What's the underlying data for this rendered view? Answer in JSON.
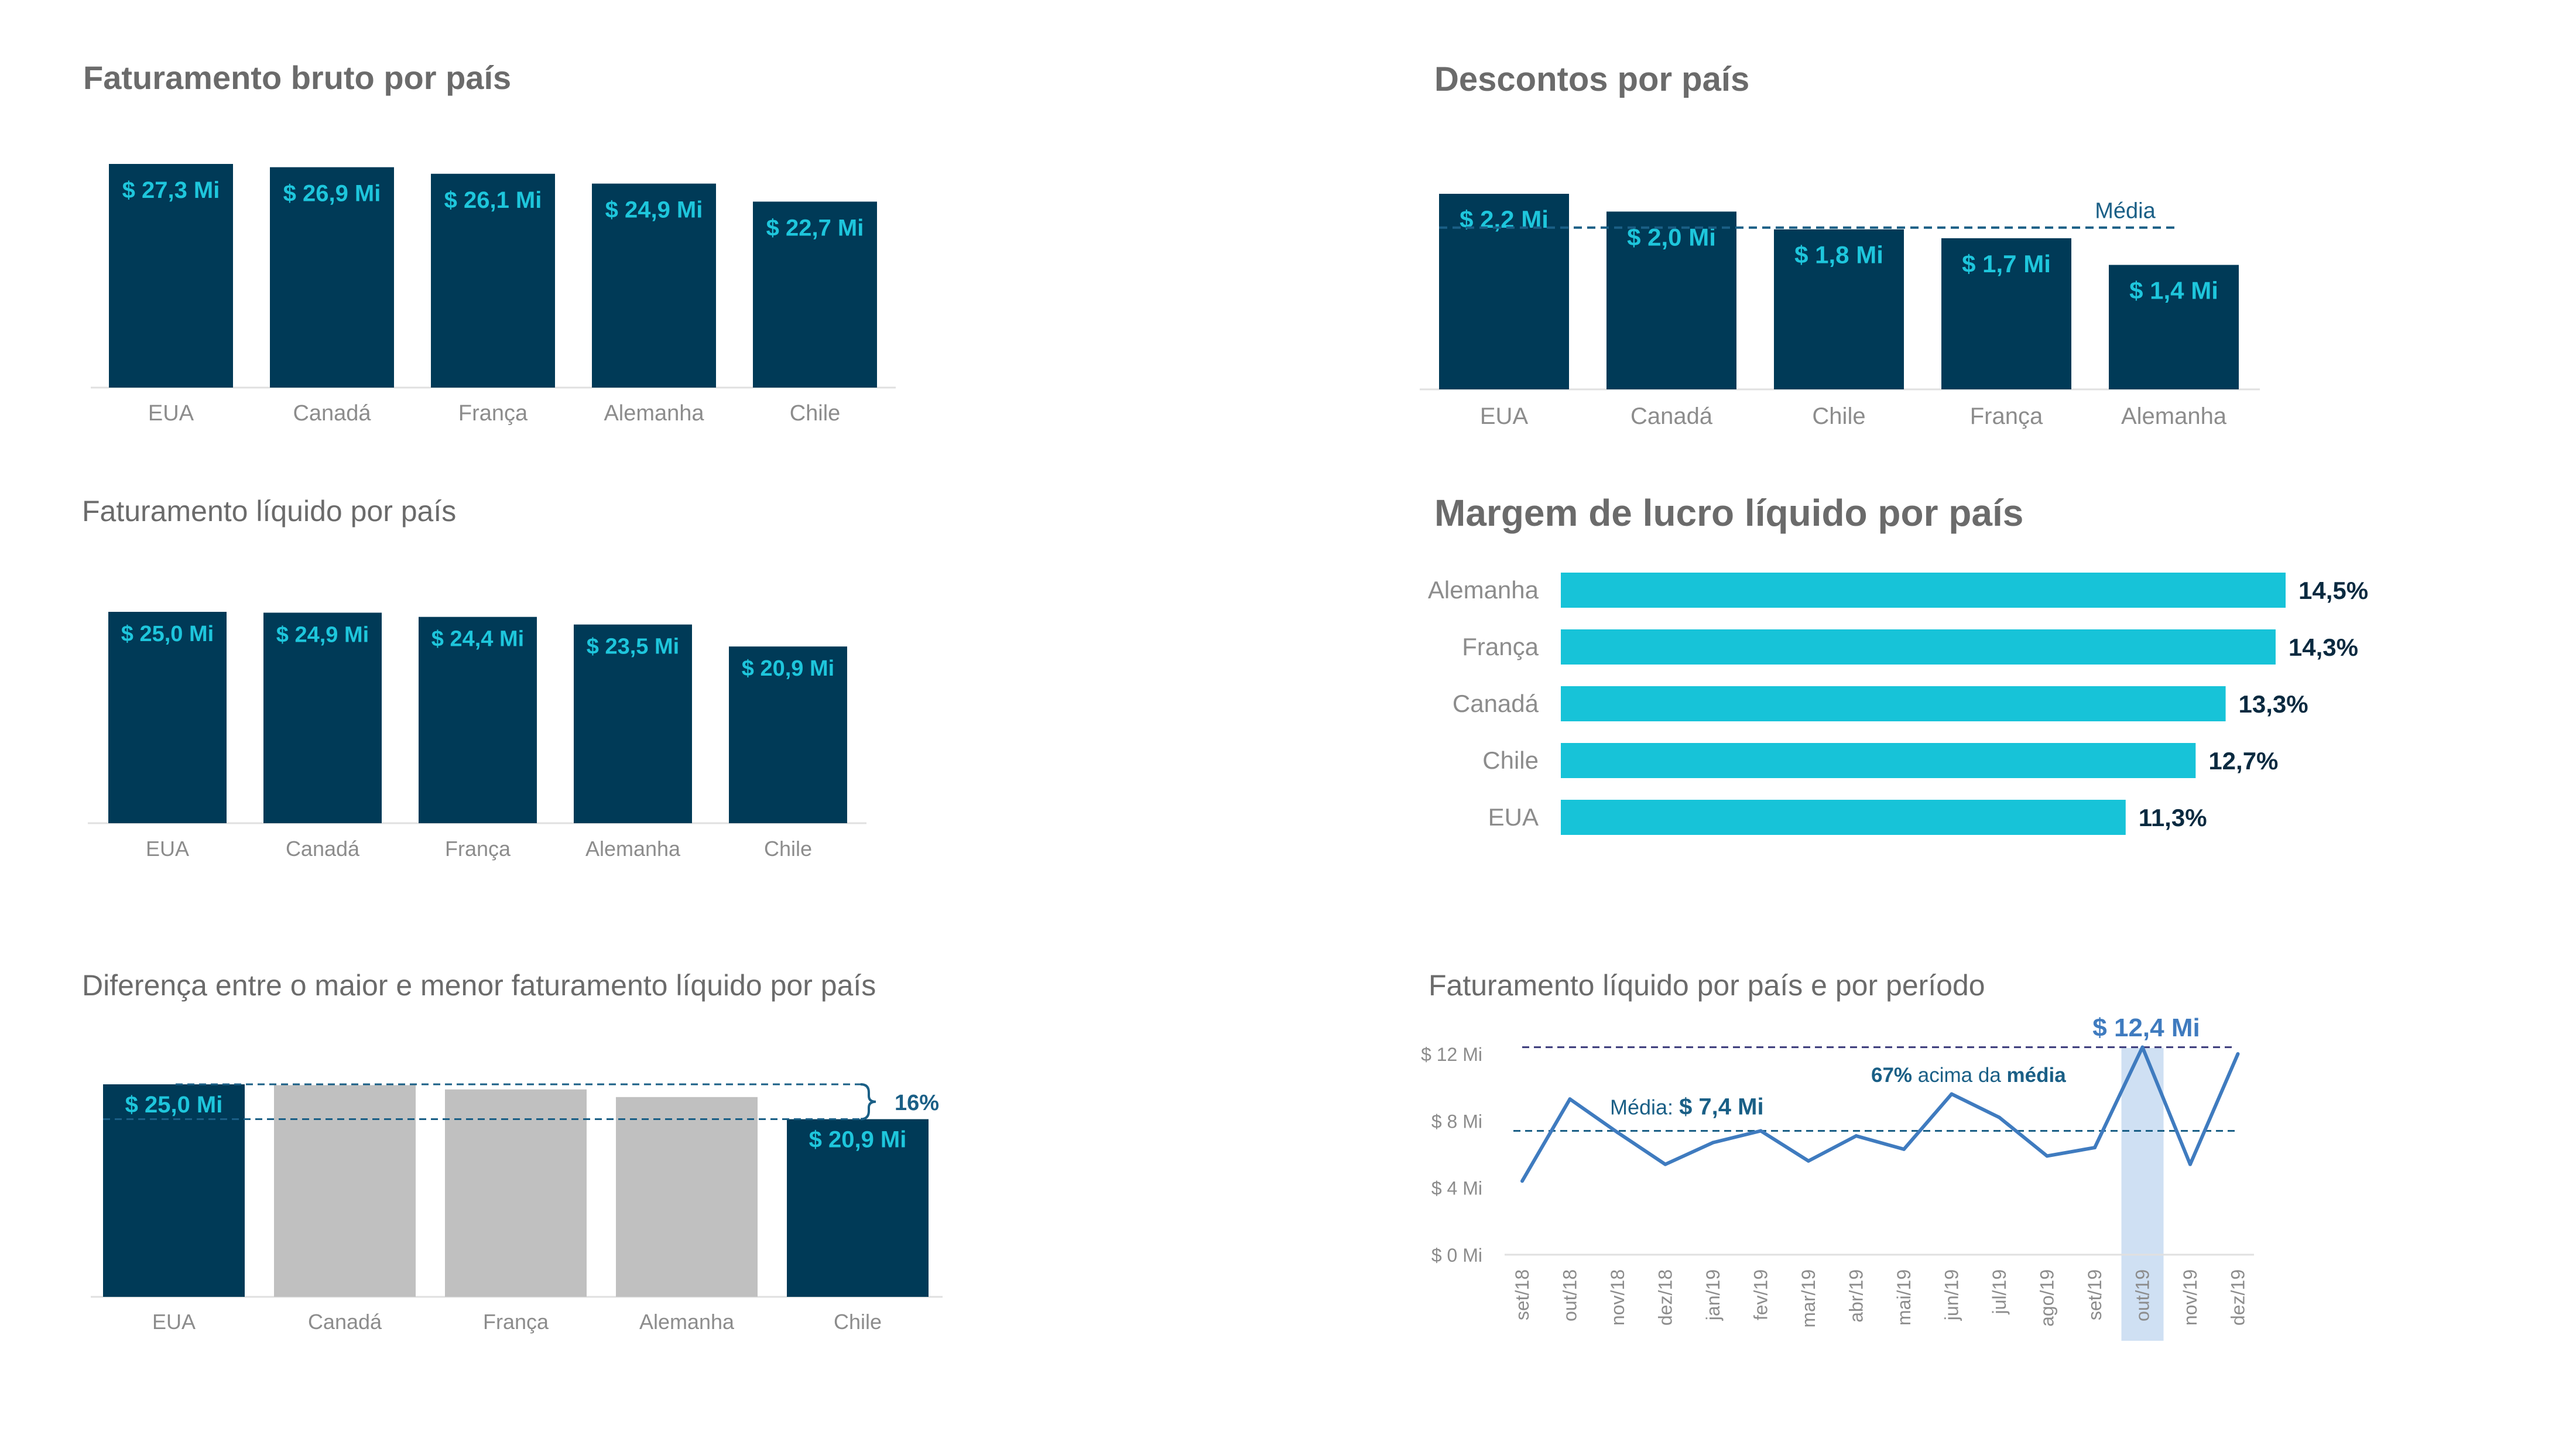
{
  "chart_data": [
    {
      "id": "gross",
      "type": "bar",
      "title": "Faturamento bruto por país",
      "categories": [
        "EUA",
        "Canadá",
        "França",
        "Alemanha",
        "Chile"
      ],
      "values": [
        27.3,
        26.9,
        26.1,
        24.9,
        22.7
      ],
      "labels": [
        "$ 27,3 Mi",
        "$ 26,9 Mi",
        "$ 26,1 Mi",
        "$ 24,9 Mi",
        "$ 22,7 Mi"
      ],
      "ylim": [
        0,
        27.3
      ],
      "grid": false,
      "color": "#003a57"
    },
    {
      "id": "discounts",
      "type": "bar",
      "title": "Descontos por país",
      "categories": [
        "EUA",
        "Canadá",
        "Chile",
        "França",
        "Alemanha"
      ],
      "values": [
        2.2,
        2.0,
        1.8,
        1.7,
        1.4
      ],
      "labels": [
        "$ 2,2 Mi",
        "$ 2,0 Mi",
        "$ 1,8 Mi",
        "$ 1,7 Mi",
        "$ 1,4 Mi"
      ],
      "reference_line": {
        "label": "Média",
        "value": 1.82
      },
      "ylim": [
        0,
        2.2
      ],
      "grid": false,
      "color": "#003a57"
    },
    {
      "id": "net",
      "type": "bar",
      "title": "Faturamento líquido por país",
      "categories": [
        "EUA",
        "Canadá",
        "França",
        "Alemanha",
        "Chile"
      ],
      "values": [
        25.0,
        24.9,
        24.4,
        23.5,
        20.9
      ],
      "labels": [
        "$ 25,0 Mi",
        "$ 24,9 Mi",
        "$ 24,4 Mi",
        "$ 23,5 Mi",
        "$ 20,9 Mi"
      ],
      "ylim": [
        0,
        25.0
      ],
      "grid": false,
      "color": "#003a57"
    },
    {
      "id": "margin",
      "type": "bar",
      "orientation": "horizontal",
      "title": "Margem de lucro líquido por país",
      "categories": [
        "Alemanha",
        "França",
        "Canadá",
        "Chile",
        "EUA"
      ],
      "values": [
        14.5,
        14.3,
        13.3,
        12.7,
        11.3
      ],
      "labels": [
        "14,5%",
        "14,3%",
        "13,3%",
        "12,7%",
        "11,3%"
      ],
      "xlim": [
        0,
        14.5
      ],
      "grid": false,
      "color": "#17c3d8"
    },
    {
      "id": "diff",
      "type": "bar",
      "title": "Diferença entre o maior e menor faturamento líquido por país",
      "categories": [
        "EUA",
        "Canadá",
        "França",
        "Alemanha",
        "Chile"
      ],
      "values": [
        25.0,
        24.9,
        24.4,
        23.5,
        20.9
      ],
      "labels": [
        "$ 25,0 Mi",
        "",
        "",
        "",
        "$ 20,9 Mi"
      ],
      "highlighted": [
        true,
        false,
        false,
        false,
        true
      ],
      "difference_label": "16%",
      "ylim": [
        0,
        25.0
      ],
      "grid": false,
      "colors": {
        "highlight": "#003a57",
        "muted": "#c0c0c0",
        "bracket": "#1a5f86"
      }
    },
    {
      "id": "period",
      "type": "line",
      "title": "Faturamento líquido por país e por período",
      "x": [
        "set/18",
        "out/18",
        "nov/18",
        "dez/18",
        "jan/19",
        "fev/19",
        "mar/19",
        "abr/19",
        "mai/19",
        "jun/19",
        "jul/19",
        "ago/19",
        "set/19",
        "out/19",
        "nov/19",
        "dez/19"
      ],
      "values": [
        4.4,
        9.3,
        7.3,
        5.4,
        6.7,
        7.4,
        5.6,
        7.1,
        6.3,
        9.6,
        8.2,
        5.9,
        6.4,
        12.4,
        5.4,
        12.0
      ],
      "yticks": [
        "$ 0 Mi",
        "$ 4 Mi",
        "$ 8 Mi",
        "$ 12 Mi"
      ],
      "ytick_values": [
        0,
        4,
        8,
        12
      ],
      "ylim": [
        0,
        12
      ],
      "average": {
        "value": 7.4,
        "prefix": "Média: ",
        "label": "$ 7,4 Mi"
      },
      "max": {
        "value": 12.4,
        "label": "$ 12,4 Mi"
      },
      "highlight_period": "out/19",
      "annotation": {
        "pct": "67%",
        "mid": " acima da ",
        "word": "média"
      },
      "grid": false,
      "colors": {
        "line": "#3f7bbf",
        "ref": "#1a5f86",
        "highlight": "#cfe0f3"
      }
    }
  ]
}
